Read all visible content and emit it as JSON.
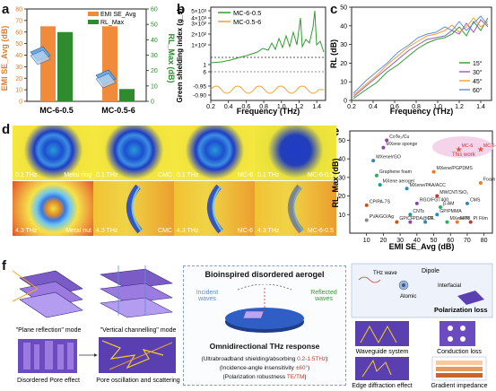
{
  "panels": {
    "a": "a",
    "b": "b",
    "c": "c",
    "d": "d",
    "e": "e",
    "f": "f"
  },
  "chart_data": [
    {
      "type": "bar",
      "panel": "a",
      "categories": [
        "MC-6-0.5",
        "MC-0.5-6"
      ],
      "series": [
        {
          "name": "EMI SE",
          "color": "#ef8b3b",
          "axis": "left",
          "values": [
            65,
            65
          ]
        },
        {
          "name": "RL",
          "color": "#2e8b2e",
          "axis": "right",
          "values": [
            45,
            8
          ]
        }
      ],
      "legend": [
        "EMI SE_Avg",
        "RL_Max"
      ],
      "ylabel_left": "EMI SE_Avg (dB)",
      "ylabel_right": "RL_Max (dB)",
      "yticks_left": [
        "0",
        "10",
        "20",
        "30",
        "40",
        "50",
        "60",
        "70",
        "80"
      ],
      "yticks_right": [
        "0",
        "10",
        "20",
        "30",
        "40",
        "50",
        "60"
      ],
      "ylim_left": [
        0,
        80
      ],
      "ylim_right": [
        0,
        60
      ]
    },
    {
      "type": "line",
      "panel": "b",
      "series": [
        {
          "name": "MC-6-0.5",
          "color": "#2e9e2e"
        },
        {
          "name": "MC-0.5-6",
          "color": "#f0a030"
        }
      ],
      "xlabel": "Frequency (THz)",
      "ylabel": "Green shielding index (g_s)",
      "xticks": [
        "0.2",
        "0.4",
        "0.6",
        "0.8",
        "1.0",
        "1.2",
        "1.4"
      ],
      "yticks": [
        "-0.90",
        "-0.95",
        "1",
        "6",
        "1×10²",
        "2×10²",
        "3×10²",
        "4×10³",
        "5×10³"
      ],
      "xlim": [
        0.2,
        1.5
      ]
    },
    {
      "type": "line",
      "panel": "c",
      "series": [
        {
          "name": "15°",
          "color": "#2e9e2e"
        },
        {
          "name": "30°",
          "color": "#9b59b6"
        },
        {
          "name": "45°",
          "color": "#f0a030"
        },
        {
          "name": "60°",
          "color": "#5b8fd8"
        }
      ],
      "xlabel": "Frequency (THz)",
      "ylabel": "RL (dB)",
      "xticks": [
        "0.2",
        "0.4",
        "0.6",
        "0.8",
        "1.0",
        "1.2",
        "1.4"
      ],
      "yticks": [
        "0",
        "10",
        "20",
        "30",
        "40",
        "50"
      ],
      "xlim": [
        0.2,
        1.5
      ],
      "ylim": [
        0,
        50
      ]
    },
    {
      "type": "scatter",
      "panel": "e",
      "xlabel": "EMI SE_Avg (dB)",
      "ylabel": "RL_Max (dB)",
      "xticks": [
        "10",
        "20",
        "30",
        "40",
        "50",
        "60",
        "70",
        "80"
      ],
      "yticks": [
        "10",
        "20",
        "30",
        "40",
        "50"
      ],
      "xlim": [
        0,
        85
      ],
      "ylim": [
        0,
        55
      ],
      "points": [
        {
          "label": "CoTe₂/Cu",
          "x": 22,
          "y": 50,
          "color": "#8e44ad"
        },
        {
          "label": "MXene sponge",
          "x": 20,
          "y": 46,
          "color": "#8e44ad"
        },
        {
          "label": "MXene/rGO",
          "x": 14,
          "y": 39,
          "color": "#2e86c1"
        },
        {
          "label": "MC-6",
          "x": 65,
          "y": 45,
          "color": "#e74c3c"
        },
        {
          "label": "MC-6-0.5",
          "x": 78,
          "y": 45,
          "color": "#e74c3c"
        },
        {
          "label": "Graphene foam",
          "x": 16,
          "y": 31,
          "color": "#27ae60"
        },
        {
          "label": "MXene/PGPDMS",
          "x": 50,
          "y": 33,
          "color": "#e67e22"
        },
        {
          "label": "MXene aerogel",
          "x": 18,
          "y": 26,
          "color": "#16a085"
        },
        {
          "label": "Foam",
          "x": 78,
          "y": 27,
          "color": "#e67e22"
        },
        {
          "label": "MXene/PAA/ACC",
          "x": 34,
          "y": 24,
          "color": "#2e86c1"
        },
        {
          "label": "MWCNT/SiO₂",
          "x": 52,
          "y": 20,
          "color": "#c0392b"
        },
        {
          "label": "CP/PA-7S",
          "x": 10,
          "y": 15,
          "color": "#d35400"
        },
        {
          "label": "RGO/FGT400",
          "x": 40,
          "y": 16,
          "color": "#8e44ad"
        },
        {
          "label": "CMS",
          "x": 70,
          "y": 16,
          "color": "#2e86c1"
        },
        {
          "label": "β-AM",
          "x": 54,
          "y": 14,
          "color": "#27ae60"
        },
        {
          "label": "GP/PMMA",
          "x": 52,
          "y": 10,
          "color": "#2e86c1"
        },
        {
          "label": "PVA/GO/Ag",
          "x": 10,
          "y": 7,
          "color": "#7f8c8d"
        },
        {
          "label": "CNTs",
          "x": 36,
          "y": 10,
          "color": "#16a085"
        },
        {
          "label": "GP/CF",
          "x": 28,
          "y": 6,
          "color": "#d35400"
        },
        {
          "label": "PDA@CF",
          "x": 36,
          "y": 6,
          "color": "#8e44ad"
        },
        {
          "label": "PIL",
          "x": 45,
          "y": 6,
          "color": "#2e86c1"
        },
        {
          "label": "MXene/PI",
          "x": 58,
          "y": 6,
          "color": "#27ae60"
        },
        {
          "label": "FPN",
          "x": 64,
          "y": 6,
          "color": "#e67e22"
        },
        {
          "label": "PI Film",
          "x": 72,
          "y": 6,
          "color": "#c0392b"
        }
      ],
      "annotation": "This work"
    }
  ],
  "panel_d": {
    "tiles": [
      {
        "freq": "0.1 THz",
        "label": "Metal ring",
        "variant": "ring"
      },
      {
        "freq": "0.1 THz",
        "label": "CMC",
        "variant": "ring"
      },
      {
        "freq": "0.1 THz",
        "label": "MC-6",
        "variant": "ring"
      },
      {
        "freq": "0.1 THz",
        "label": "MC-6-0.5",
        "variant": "ring-dark"
      },
      {
        "freq": "4.3 THz",
        "label": "Metal nut",
        "variant": "nut"
      },
      {
        "freq": "4.3 THz",
        "label": "CMC",
        "variant": "arc"
      },
      {
        "freq": "4.3 THz",
        "label": "MC-6",
        "variant": "arc"
      },
      {
        "freq": "4.3 THz",
        "label": "MC-6-0.5",
        "variant": "arc-faint"
      }
    ]
  },
  "panel_f": {
    "plane_reflection": "\"Plane reflection\" mode",
    "vertical_channelling": "\"Vertical channelling\" mode",
    "disordered_pore": "Disordered Pore effect",
    "pore_oscillation": "Pore oscillation and scattering",
    "title": "Bioinspired disordered aerogel",
    "incident": "Incident waves",
    "reflected": "Reflected waves",
    "response_title": "Omnidirectional THz response",
    "line1_prefix": "(Ultrabroadband shielding/absorbing ",
    "line1_value": "0.2-1.5THz",
    "line1_suffix": ")",
    "line2_prefix": "(Incidence-angle insensitivity ",
    "line2_value": "±60°",
    "line2_suffix": ")",
    "line3_prefix": "(Polarization robustness ",
    "line3_value": "TE/TM",
    "line3_suffix": ")",
    "dipole": "Dipole",
    "thz_wave": "THz wave",
    "atomic": "Atomic",
    "interfacial": "Interfacial",
    "polarization_loss": "Polarization loss",
    "waveguide": "Waveguide system",
    "conduction_loss": "Conduction loss",
    "edge_diffraction": "Edge diffraction effect",
    "gradient_impedance": "Gradient impedance"
  }
}
